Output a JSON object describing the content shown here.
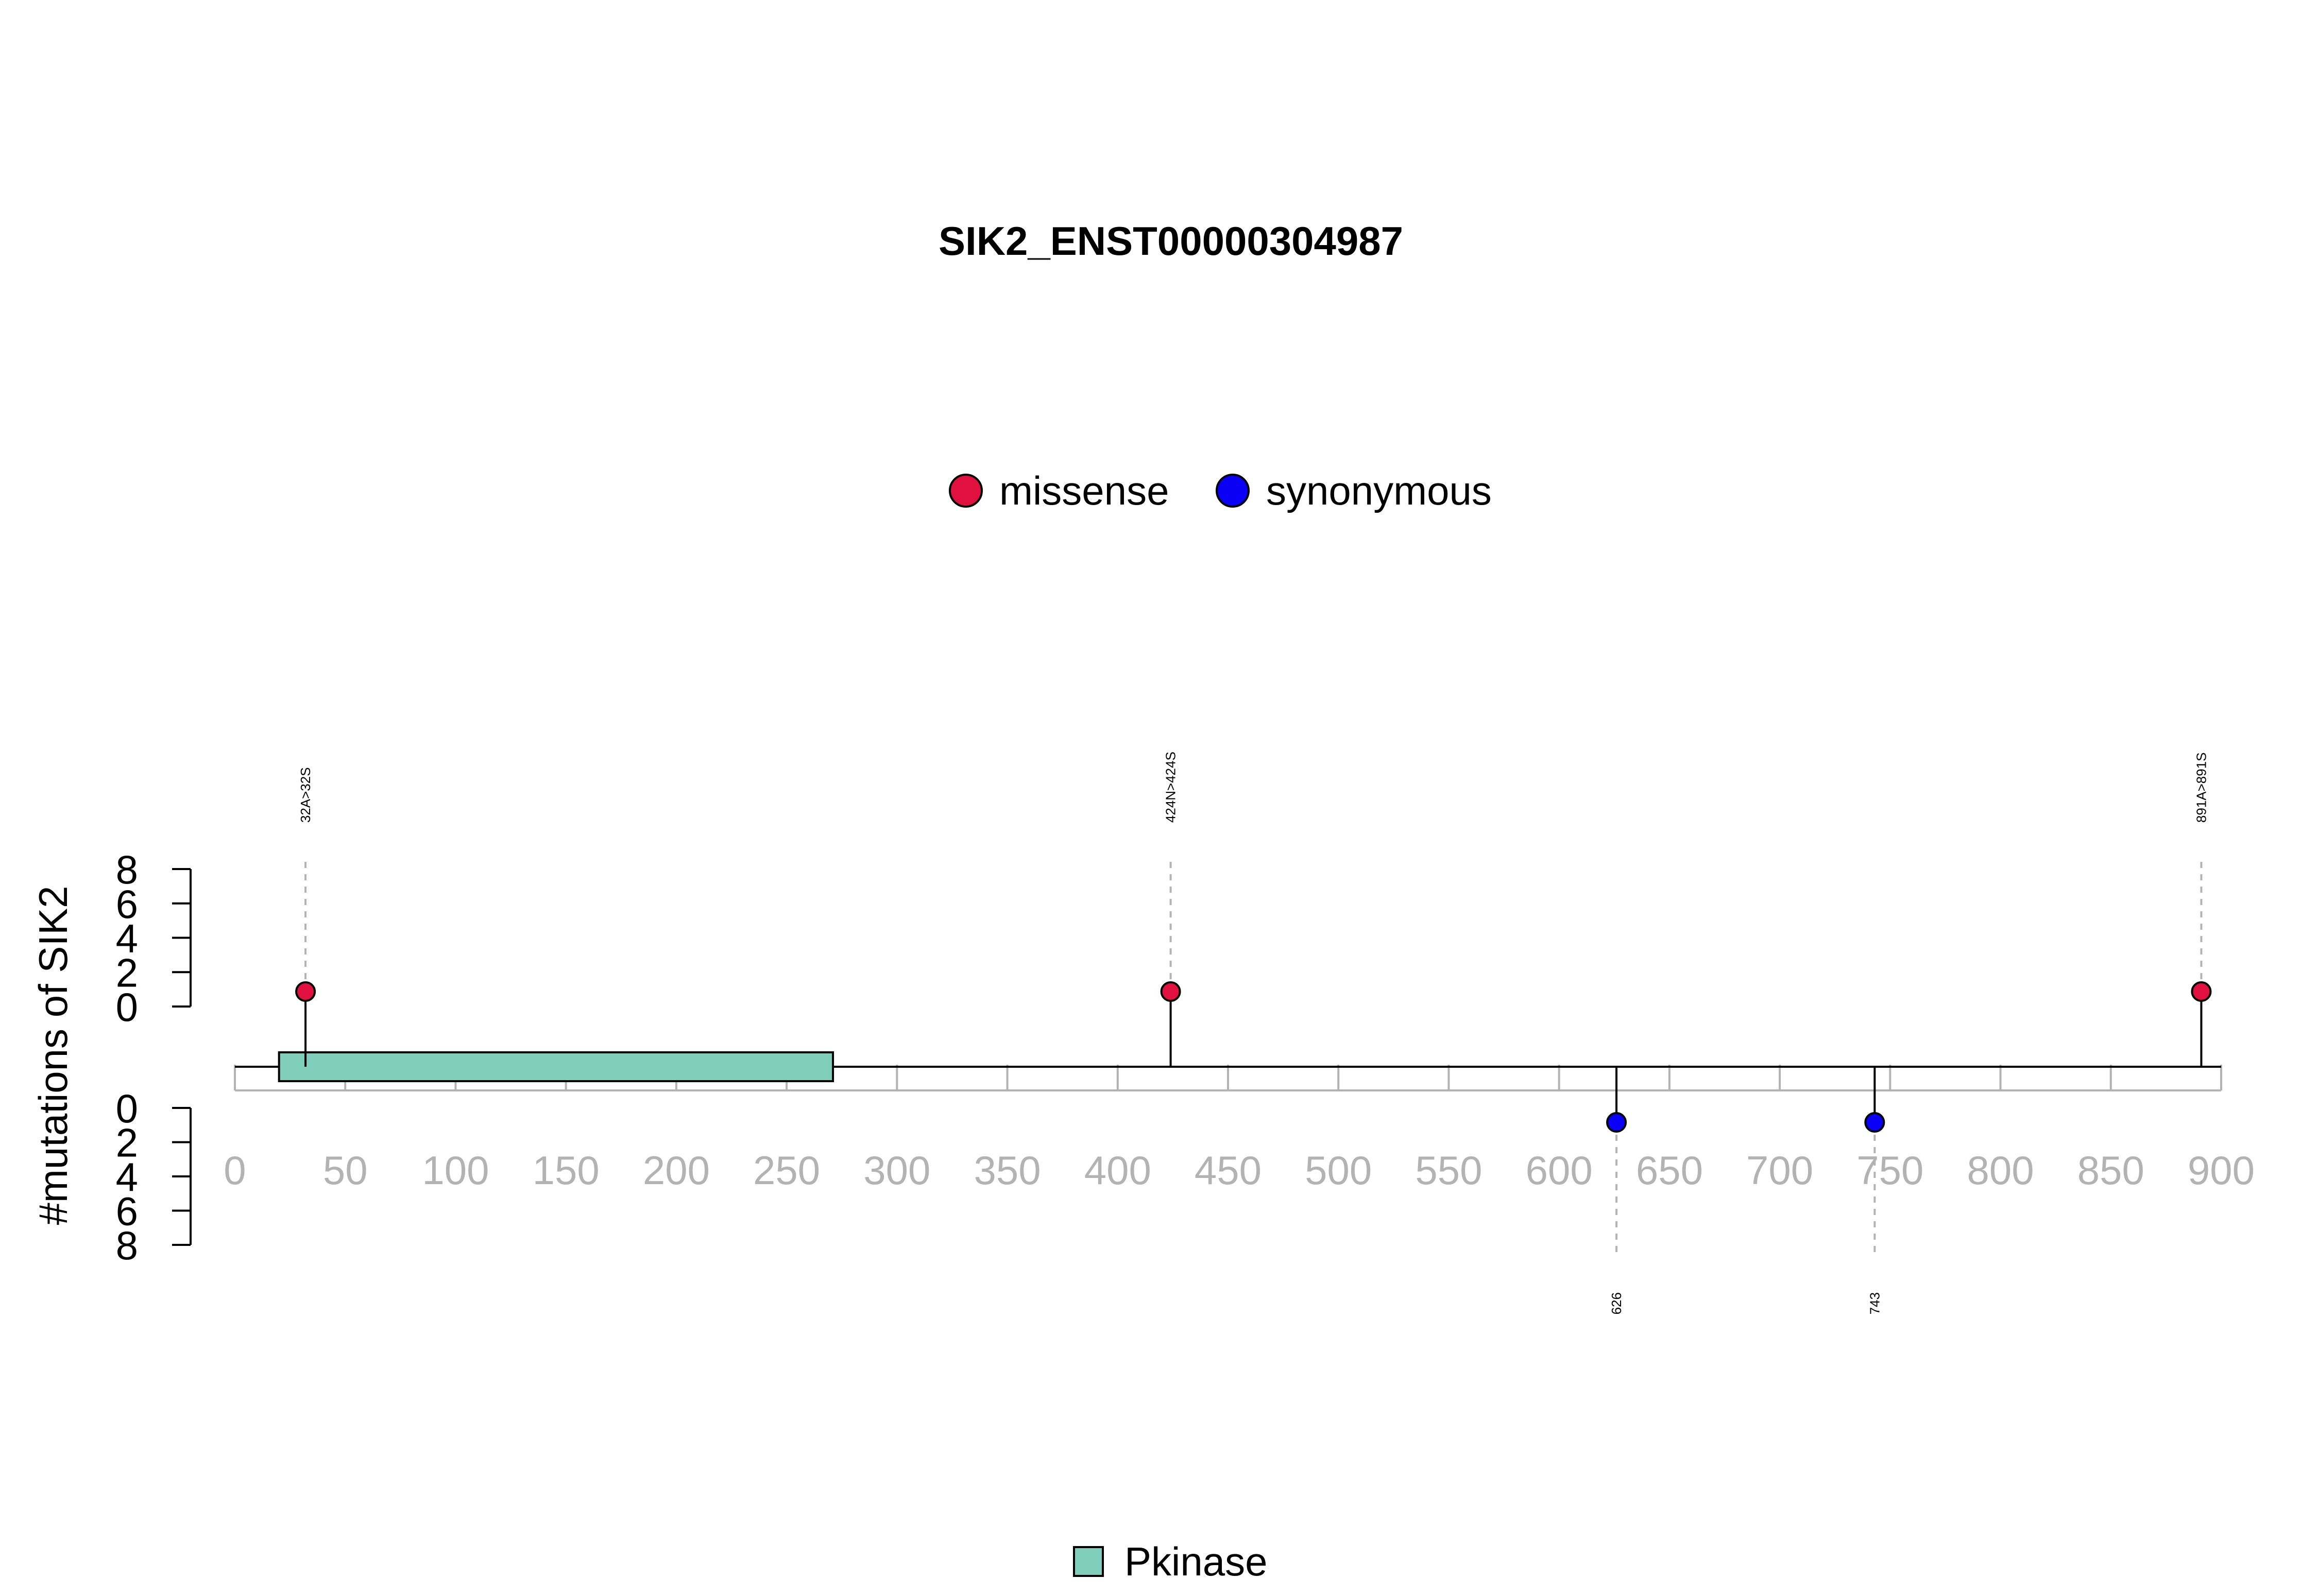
{
  "chart_data": {
    "type": "lollipop",
    "title": "SIK2_ENST00000304987",
    "ylabel": "#mutations of SIK2",
    "xlabel": "",
    "xlim": [
      0,
      900
    ],
    "x_ticks": [
      0,
      50,
      100,
      150,
      200,
      250,
      300,
      350,
      400,
      450,
      500,
      550,
      600,
      650,
      700,
      750,
      800,
      850,
      900
    ],
    "y_ticks_upper": [
      0,
      2,
      4,
      6,
      8
    ],
    "y_ticks_lower": [
      0,
      2,
      4,
      6,
      8
    ],
    "ylim": [
      0,
      8
    ],
    "legend": {
      "placement": "top-center",
      "entries": [
        {
          "name": "missense",
          "color": "#e0103f"
        },
        {
          "name": "synonymous",
          "color": "#0a00f5"
        }
      ]
    },
    "domains": [
      {
        "name": "Pkinase",
        "start": 20,
        "end": 271,
        "color": "#7fcdbb"
      }
    ],
    "mutations": [
      {
        "position": 32,
        "label": "32A>32S",
        "type": "missense",
        "count": 1,
        "side": "top"
      },
      {
        "position": 424,
        "label": "424N>424S",
        "type": "missense",
        "count": 1,
        "side": "top"
      },
      {
        "position": 891,
        "label": "891A>891S",
        "type": "missense",
        "count": 1,
        "side": "top"
      },
      {
        "position": 626,
        "label": "626",
        "type": "synonymous",
        "count": 1,
        "side": "bottom"
      },
      {
        "position": 743,
        "label": "743",
        "type": "synonymous",
        "count": 1,
        "side": "bottom"
      }
    ]
  }
}
